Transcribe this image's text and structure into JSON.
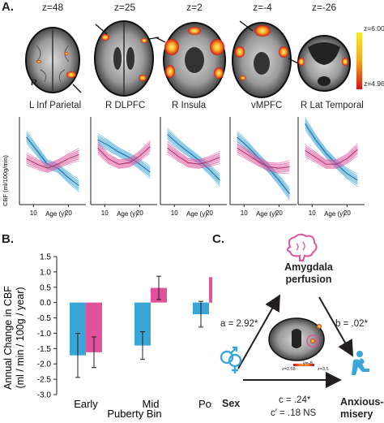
{
  "panelA": {
    "letter": "A.",
    "slices": [
      "z=48",
      "z=25",
      "z=2",
      "z=-4",
      "z=-26"
    ],
    "hemisphere": "R",
    "colorbar": {
      "max": "z=6.00",
      "min": "z=4.96",
      "colors": [
        "#f7ec2a",
        "#f5a623",
        "#d5141a"
      ]
    },
    "ylabel": "CBF (ml/100g/min)",
    "xlabel": "Age (y)",
    "xticks": [
      "10",
      "20"
    ],
    "titles": [
      "L Inf Parietal",
      "R DLPFC",
      "R Insula",
      "vMPFC",
      "R Lat Temporal"
    ]
  },
  "panelB": {
    "letter": "B."
  },
  "panelC": {
    "letter": "C.",
    "mediator": [
      "Amygdala",
      "perfusion"
    ],
    "x": "Sex",
    "y": [
      "Anxious-",
      "misery"
    ],
    "a": "a = 2.92*",
    "b": "b = .02*",
    "c": "c = .24*",
    "cprime": "c′ = .18 NS",
    "slice": "y=-8",
    "mini_colorbar": {
      "min": "z=2.58",
      "max": "z=3.5"
    }
  },
  "chart_data": [
    {
      "type": "line",
      "title": "L Inf Parietal",
      "xlabel": "Age (y)",
      "ylabel": "CBF (ml/100g/min)",
      "x": [
        8,
        11,
        14,
        17,
        20,
        23
      ],
      "series": [
        {
          "color": "#3aa6d8",
          "values": [
            90,
            80,
            70,
            67,
            60,
            54
          ]
        },
        {
          "color": "#e0529c",
          "values": [
            74,
            70,
            67,
            70,
            74,
            77
          ]
        }
      ]
    },
    {
      "type": "line",
      "title": "R DLPFC",
      "xlabel": "Age (y)",
      "ylabel": "CBF (ml/100g/min)",
      "x": [
        8,
        11,
        14,
        17,
        20,
        23
      ],
      "series": [
        {
          "color": "#3aa6d8",
          "values": [
            88,
            84,
            79,
            75,
            70,
            64
          ]
        },
        {
          "color": "#e0529c",
          "values": [
            82,
            74,
            70,
            71,
            76,
            83
          ]
        }
      ]
    },
    {
      "type": "line",
      "title": "R Insula",
      "xlabel": "Age (y)",
      "ylabel": "CBF (ml/100g/min)",
      "x": [
        8,
        11,
        14,
        17,
        20,
        23
      ],
      "series": [
        {
          "color": "#3aa6d8",
          "values": [
            92,
            85,
            79,
            73,
            66,
            58
          ]
        },
        {
          "color": "#e0529c",
          "values": [
            82,
            76,
            71,
            70,
            72,
            75
          ]
        }
      ]
    },
    {
      "type": "line",
      "title": "vMPFC",
      "xlabel": "Age (y)",
      "ylabel": "CBF (ml/100g/min)",
      "x": [
        8,
        11,
        14,
        17,
        20,
        23
      ],
      "series": [
        {
          "color": "#3aa6d8",
          "values": [
            90,
            83,
            75,
            67,
            58,
            48
          ]
        },
        {
          "color": "#e0529c",
          "values": [
            82,
            77,
            72,
            68,
            67,
            68
          ]
        }
      ]
    },
    {
      "type": "line",
      "title": "R Lat Temporal",
      "xlabel": "Age (y)",
      "ylabel": "CBF (ml/100g/min)",
      "x": [
        8,
        11,
        14,
        17,
        20,
        23
      ],
      "series": [
        {
          "color": "#3aa6d8",
          "values": [
            100,
            88,
            78,
            70,
            63,
            58
          ]
        },
        {
          "color": "#e0529c",
          "values": [
            80,
            75,
            70,
            70,
            74,
            81
          ]
        }
      ]
    },
    {
      "type": "bar",
      "title": "",
      "xlabel": "Puberty Bin",
      "ylabel": "Annual Change in CBF\n(ml / min / 100g / year)",
      "categories": [
        "Early",
        "Mid",
        "Post"
      ],
      "ylim": [
        -3.0,
        1.5
      ],
      "yticks": [
        "1.5",
        "1.0",
        "0.5",
        "0.0",
        "-0.5",
        "-1.0",
        "-1.5",
        "-2.0",
        "-2.5",
        "-3.0"
      ],
      "series": [
        {
          "color": "#3aa6d8",
          "values": [
            -1.72,
            -1.4,
            -0.38
          ],
          "err": [
            0.72,
            0.45,
            0.42
          ]
        },
        {
          "color": "#e0529c",
          "values": [
            -1.62,
            0.48,
            0.83
          ],
          "err": [
            0.5,
            0.38,
            0.25
          ]
        }
      ]
    }
  ]
}
